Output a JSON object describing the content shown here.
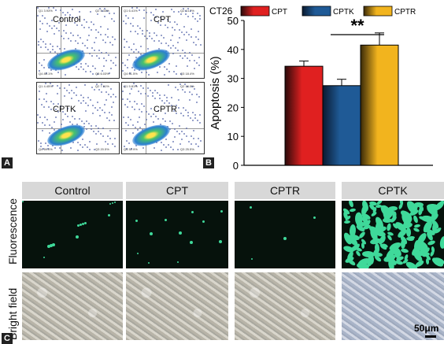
{
  "panel_letters": {
    "a": "A",
    "b": "B",
    "c": "C"
  },
  "flow_panels": [
    {
      "label": "Control",
      "q1": "Q1",
      "q1v": "3.93%",
      "q2": "Q2",
      "q2v": "5.33%",
      "q3": "Q3",
      "q3v": "6.03%",
      "q4": "Q4",
      "q4v": "85.1%"
    },
    {
      "label": "CPT",
      "q1": "Q1",
      "q1v": "6.41%",
      "q2": "Q2",
      "q2v": "14.7%",
      "q3": "Q3",
      "q3v": "18.4%",
      "q4": "Q4",
      "q4v": "61.5%"
    },
    {
      "label": "CPTK",
      "q1": "Q1",
      "q1v": "4.45%",
      "q2": "Q2",
      "q2v": "7.91%",
      "q3": "Q3",
      "q3v": "20.5%",
      "q4": "Q4",
      "q4v": "69.0%"
    },
    {
      "label": "CPTR",
      "q1": "Q1",
      "q1v": "5.81%",
      "q2": "Q2",
      "q2v": "16.0%",
      "q3": "Q3",
      "q3v": "25.5%",
      "q4": "Q4",
      "q4v": "52.9%"
    }
  ],
  "chart_data": {
    "type": "bar",
    "title": "CT26",
    "ylabel": "Apoptosis (%)",
    "xlabel": "",
    "ylim": [
      0,
      50
    ],
    "yticks": [
      0,
      10,
      20,
      30,
      40,
      50
    ],
    "categories": [
      "CPT",
      "CPTK",
      "CPTR"
    ],
    "values": [
      34.2,
      27.5,
      41.5
    ],
    "errors": [
      1.8,
      2.2,
      4.2
    ],
    "colors": [
      "#e02020",
      "#1f5a96",
      "#f2b41e"
    ],
    "legend": [
      "CPT",
      "CPTK",
      "CPTR"
    ],
    "legend_position": "top",
    "significance": {
      "text": "**",
      "between": [
        "CPTK",
        "CPTR"
      ]
    }
  },
  "micro": {
    "columns": [
      "Control",
      "CPT",
      "CPTR",
      "CPTK"
    ],
    "rows": [
      "Fluorescence",
      "Bright field"
    ],
    "scale_bar": "50μm"
  }
}
